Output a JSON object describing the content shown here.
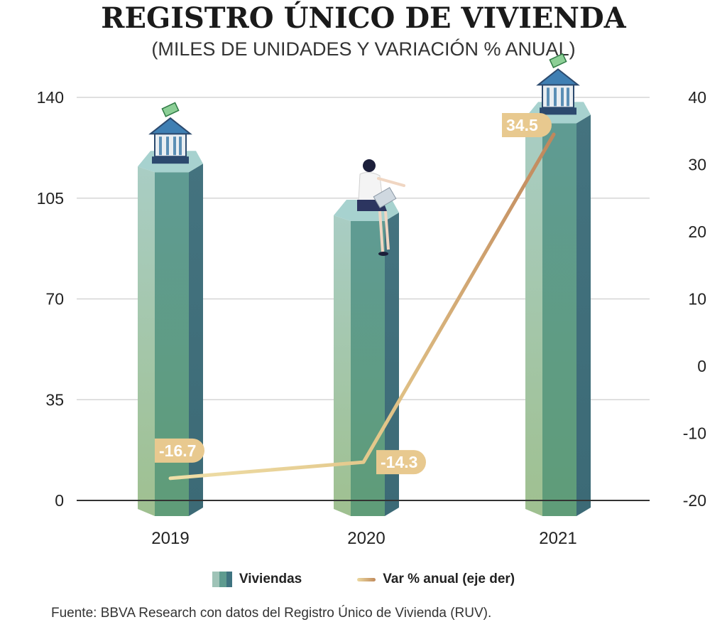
{
  "chart_data": {
    "type": "bar",
    "title": "REGISTRO ÚNICO DE VIVIENDA",
    "subtitle": "(MILES DE UNIDADES Y VARIACIÓN % ANUAL)",
    "categories": [
      "2019",
      "2020",
      "2021"
    ],
    "series": [
      {
        "name": "Viviendas",
        "type": "bar",
        "axis": "left",
        "values": [
          116,
          99,
          133
        ]
      },
      {
        "name": "Var % anual (eje der)",
        "type": "line",
        "axis": "right",
        "values": [
          -16.7,
          -14.3,
          34.5
        ]
      }
    ],
    "data_labels": [
      "-16.7",
      "-14.3",
      "34.5"
    ],
    "y_left": {
      "ylim": [
        0,
        140
      ],
      "ticks": [
        "0",
        "35",
        "70",
        "105",
        "140"
      ]
    },
    "y_right": {
      "ylim": [
        -20,
        40
      ],
      "ticks": [
        "-20",
        "-10",
        "0",
        "10",
        "20",
        "30",
        "40"
      ]
    },
    "grid": true,
    "legend_position": "bottom",
    "colors": {
      "bar_light": "#9cc4b4",
      "bar_mid": "#5e9b8f",
      "bar_dark": "#3f7380",
      "line_start": "#ecd9a0",
      "line_end": "#c08a5c",
      "label_bg": "#e8c98f"
    }
  },
  "legend": {
    "bars": "Viviendas",
    "line": "Var % anual (eje der)"
  },
  "source": "Fuente: BBVA Research con datos del Registro Único de Vivienda (RUV)."
}
